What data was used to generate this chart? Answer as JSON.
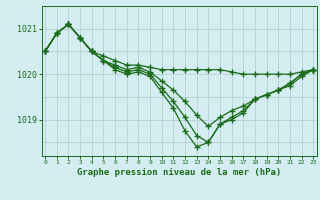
{
  "xlabel": "Graphe pression niveau de la mer (hPa)",
  "background_color": "#d4edf0",
  "grid_color": "#b8d4d8",
  "line_color": "#1a6b1a",
  "hours": [
    0,
    1,
    2,
    3,
    4,
    5,
    6,
    7,
    8,
    9,
    10,
    11,
    12,
    13,
    14,
    15,
    16,
    17,
    18,
    19,
    20,
    21,
    22,
    23
  ],
  "flat_series": [
    1020.5,
    1020.9,
    1021.1,
    1020.8,
    1020.5,
    1020.4,
    1020.3,
    1020.2,
    1020.2,
    1020.15,
    1020.1,
    1020.1,
    1020.1,
    1020.1,
    1020.1,
    1020.1,
    1020.05,
    1020.0,
    1020.0,
    1020.0,
    1020.0,
    1020.0,
    1020.05,
    1020.1
  ],
  "dip_series1": [
    1020.5,
    1020.9,
    1021.1,
    1020.8,
    1020.5,
    1020.3,
    1020.2,
    1020.1,
    1020.15,
    1020.05,
    1019.85,
    1019.65,
    1019.4,
    1019.1,
    1018.85,
    1019.05,
    1019.2,
    1019.3,
    1019.45,
    1019.55,
    1019.65,
    1019.75,
    1019.95,
    1020.1
  ],
  "dip_series2": [
    1020.5,
    1020.9,
    1021.1,
    1020.8,
    1020.5,
    1020.3,
    1020.15,
    1020.05,
    1020.1,
    1020.0,
    1019.7,
    1019.4,
    1019.05,
    1018.65,
    1018.5,
    1018.9,
    1019.05,
    1019.2,
    1019.45,
    1019.55,
    1019.65,
    1019.8,
    1020.0,
    1020.1
  ],
  "dip_series3": [
    1020.5,
    1020.9,
    1021.1,
    1020.8,
    1020.5,
    1020.3,
    1020.1,
    1020.0,
    1020.05,
    1019.95,
    1019.6,
    1019.25,
    1018.75,
    1018.4,
    1018.5,
    1018.9,
    1019.0,
    1019.15,
    1019.45,
    1019.55,
    1019.65,
    1019.8,
    1020.0,
    1020.1
  ],
  "ylim": [
    1018.2,
    1021.5
  ],
  "yticks": [
    1019,
    1020,
    1021
  ],
  "xticks": [
    0,
    1,
    2,
    3,
    4,
    5,
    6,
    7,
    8,
    9,
    10,
    11,
    12,
    13,
    14,
    15,
    16,
    17,
    18,
    19,
    20,
    21,
    22,
    23
  ]
}
